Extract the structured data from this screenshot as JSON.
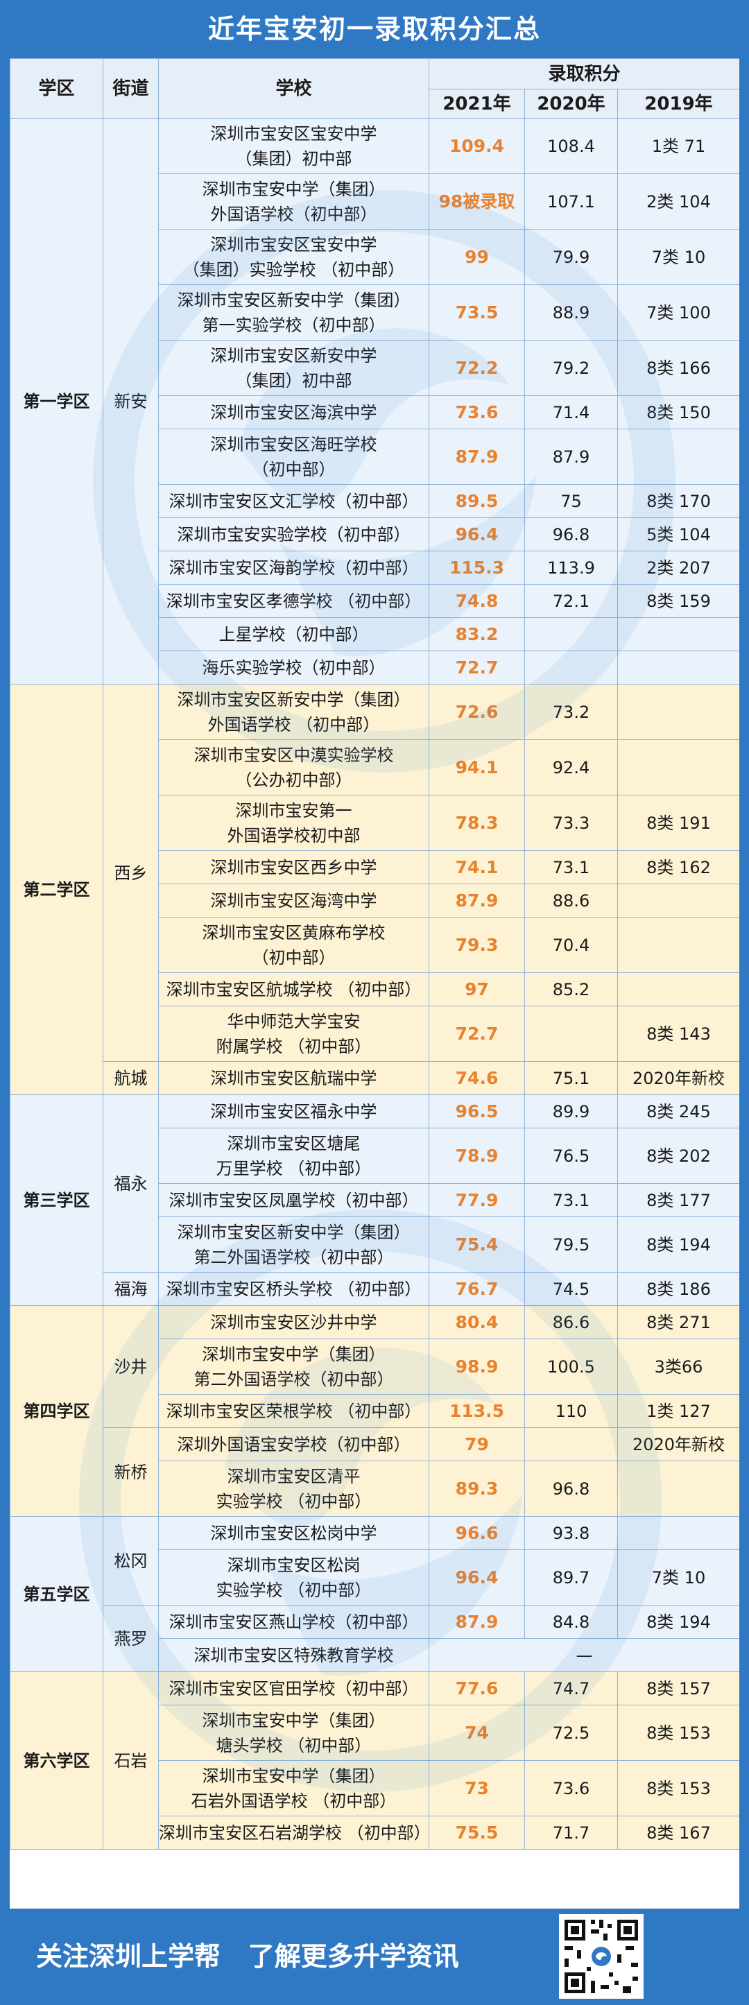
{
  "title": "近年宝安初一录取积分汇总",
  "header": {
    "district": "学区",
    "street": "街道",
    "school": "学校",
    "score_group": "录取积分",
    "y2021": "2021年",
    "y2020": "2020年",
    "y2019": "2019年"
  },
  "districts": [
    {
      "name": "第一学区",
      "color": "blue",
      "streets": [
        {
          "name": "新安",
          "schools": [
            {
              "name": "深圳市宝安区宝安中学\n（集团）初中部",
              "s2021": "109.4",
              "s2020": "108.4",
              "s2019": "1类 71"
            },
            {
              "name": "深圳市宝安中学（集团）\n外国语学校（初中部）",
              "s2021": "98被录取",
              "s2020": "107.1",
              "s2019": "2类 104"
            },
            {
              "name": "深圳市宝安区宝安中学\n（集团）实验学校 （初中部）",
              "s2021": "99",
              "s2020": "79.9",
              "s2019": "7类 10"
            },
            {
              "name": "深圳市宝安区新安中学（集团）\n第一实验学校（初中部）",
              "s2021": "73.5",
              "s2020": "88.9",
              "s2019": "7类 100"
            },
            {
              "name": "深圳市宝安区新安中学\n（集团）初中部",
              "s2021": "72.2",
              "s2020": "79.2",
              "s2019": "8类 166"
            },
            {
              "name": "深圳市宝安区海滨中学",
              "s2021": "73.6",
              "s2020": "71.4",
              "s2019": "8类 150"
            },
            {
              "name": "深圳市宝安区海旺学校\n（初中部）",
              "s2021": "87.9",
              "s2020": "87.9",
              "s2019": ""
            },
            {
              "name": "深圳市宝安区文汇学校（初中部）",
              "s2021": "89.5",
              "s2020": "75",
              "s2019": "8类 170"
            },
            {
              "name": "深圳市宝安实验学校（初中部）",
              "s2021": "96.4",
              "s2020": "96.8",
              "s2019": "5类 104"
            },
            {
              "name": "深圳市宝安区海韵学校（初中部）",
              "s2021": "115.3",
              "s2020": "113.9",
              "s2019": "2类 207"
            },
            {
              "name": "深圳市宝安区孝德学校 （初中部）",
              "s2021": "74.8",
              "s2020": "72.1",
              "s2019": "8类 159"
            },
            {
              "name": "上星学校（初中部）",
              "s2021": "83.2",
              "s2020": "",
              "s2019": ""
            },
            {
              "name": "海乐实验学校（初中部）",
              "s2021": "72.7",
              "s2020": "",
              "s2019": ""
            }
          ]
        }
      ]
    },
    {
      "name": "第二学区",
      "color": "yellow",
      "streets": [
        {
          "name": "西乡",
          "schools": [
            {
              "name": "深圳市宝安区新安中学（集团）\n外国语学校 （初中部）",
              "s2021": "72.6",
              "s2020": "73.2",
              "s2019": ""
            },
            {
              "name": "深圳市宝安区中漠实验学校\n（公办初中部）",
              "s2021": "94.1",
              "s2020": "92.4",
              "s2019": ""
            },
            {
              "name": "深圳市宝安第一\n外国语学校初中部",
              "s2021": "78.3",
              "s2020": "73.3",
              "s2019": "8类 191"
            },
            {
              "name": "深圳市宝安区西乡中学",
              "s2021": "74.1",
              "s2020": "73.1",
              "s2019": "8类 162"
            },
            {
              "name": "深圳市宝安区海湾中学",
              "s2021": "87.9",
              "s2020": "88.6",
              "s2019": ""
            },
            {
              "name": "深圳市宝安区黄麻布学校\n（初中部）",
              "s2021": "79.3",
              "s2020": "70.4",
              "s2019": ""
            },
            {
              "name": "深圳市宝安区航城学校 （初中部）",
              "s2021": "97",
              "s2020": "85.2",
              "s2019": ""
            },
            {
              "name": "华中师范大学宝安\n附属学校 （初中部）",
              "s2021": "72.7",
              "s2020": "",
              "s2019": "8类 143"
            }
          ]
        },
        {
          "name": "航城",
          "schools": [
            {
              "name": "深圳市宝安区航瑞中学",
              "s2021": "74.6",
              "s2020": "75.1",
              "s2019": "2020年新校"
            }
          ]
        }
      ]
    },
    {
      "name": "第三学区",
      "color": "blue",
      "streets": [
        {
          "name": "福永",
          "schools": [
            {
              "name": "深圳市宝安区福永中学",
              "s2021": "96.5",
              "s2020": "89.9",
              "s2019": "8类 245"
            },
            {
              "name": "深圳市宝安区塘尾\n万里学校 （初中部）",
              "s2021": "78.9",
              "s2020": "76.5",
              "s2019": "8类 202"
            },
            {
              "name": "深圳市宝安区凤凰学校（初中部）",
              "s2021": "77.9",
              "s2020": "73.1",
              "s2019": "8类 177"
            },
            {
              "name": "深圳市宝安区新安中学（集团）\n第二外国语学校（初中部）",
              "s2021": "75.4",
              "s2020": "79.5",
              "s2019": "8类 194"
            }
          ]
        },
        {
          "name": "福海",
          "schools": [
            {
              "name": "深圳市宝安区桥头学校 （初中部）",
              "s2021": "76.7",
              "s2020": "74.5",
              "s2019": "8类 186"
            }
          ]
        }
      ]
    },
    {
      "name": "第四学区",
      "color": "yellow",
      "streets": [
        {
          "name": "沙井",
          "schools": [
            {
              "name": "深圳市宝安区沙井中学",
              "s2021": "80.4",
              "s2020": "86.6",
              "s2019": "8类 271"
            },
            {
              "name": "深圳市宝安中学（集团）\n第二外国语学校（初中部）",
              "s2021": "98.9",
              "s2020": "100.5",
              "s2019": "3类66"
            },
            {
              "name": "深圳市宝安区荣根学校 （初中部）",
              "s2021": "113.5",
              "s2020": "110",
              "s2019": "1类 127"
            }
          ]
        },
        {
          "name": "新桥",
          "schools": [
            {
              "name": "深圳外国语宝安学校（初中部）",
              "s2021": "79",
              "s2020": "",
              "s2019": "2020年新校"
            },
            {
              "name": "深圳市宝安区清平\n实验学校 （初中部）",
              "s2021": "89.3",
              "s2020": "96.8",
              "s2019": ""
            }
          ]
        }
      ]
    },
    {
      "name": "第五学区",
      "color": "blue",
      "streets": [
        {
          "name": "松冈",
          "schools": [
            {
              "name": "深圳市宝安区松岗中学",
              "s2021": "96.6",
              "s2020": "93.8",
              "s2019": ""
            },
            {
              "name": "深圳市宝安区松岗\n实验学校 （初中部）",
              "s2021": "96.4",
              "s2020": "89.7",
              "s2019": "7类 10"
            }
          ]
        },
        {
          "name": "燕罗",
          "schools": [
            {
              "name": "深圳市宝安区燕山学校（初中部）",
              "s2021": "87.9",
              "s2020": "84.8",
              "s2019": "8类 194"
            },
            {
              "name": "深圳市宝安区特殊教育学校",
              "merged": "—"
            }
          ]
        }
      ]
    },
    {
      "name": "第六学区",
      "color": "yellow",
      "streets": [
        {
          "name": "石岩",
          "schools": [
            {
              "name": "深圳市宝安区官田学校（初中部）",
              "s2021": "77.6",
              "s2020": "74.7",
              "s2019": "8类 157"
            },
            {
              "name": "深圳市宝安中学（集团）\n塘头学校 （初中部）",
              "s2021": "74",
              "s2020": "72.5",
              "s2019": "8类 153"
            },
            {
              "name": "深圳市宝安中学（集团）\n石岩外国语学校 （初中部）",
              "s2021": "73",
              "s2020": "73.6",
              "s2019": "8类 153"
            },
            {
              "name": "深圳市宝安区石岩湖学校 （初中部）",
              "s2021": "75.5",
              "s2020": "71.7",
              "s2019": "8类 167"
            }
          ]
        }
      ]
    }
  ],
  "footer": {
    "text": "关注深圳上学帮   了解更多升学资讯"
  },
  "colors": {
    "brand_blue": "#2f79c4",
    "score_orange": "#e8822e",
    "row_blue": "#eaf2fb",
    "row_yellow": "#fdf3d4"
  }
}
